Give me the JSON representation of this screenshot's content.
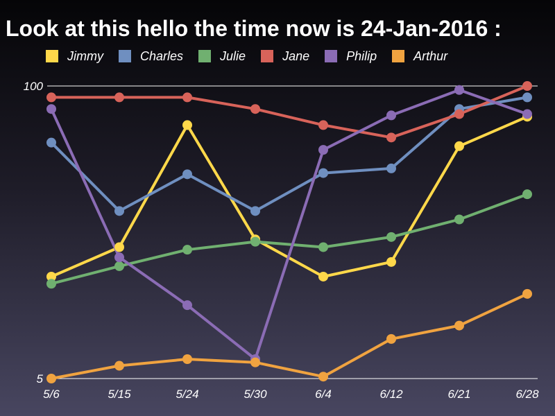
{
  "chart_data": {
    "type": "line",
    "title": "Look at this hello the time now is 24-Jan-2016 :",
    "xlabel": "",
    "ylabel": "",
    "categories": [
      "5/6",
      "5/15",
      "5/24",
      "5/30",
      "6/4",
      "6/12",
      "6/21",
      "6/28"
    ],
    "ylim": [
      5,
      100
    ],
    "yticks": [
      5,
      100
    ],
    "yscale": "log",
    "grid": false,
    "legend_position": "top",
    "series": [
      {
        "name": "Jimmy",
        "color": "#ffd84a",
        "values": [
          14.2,
          19.2,
          67,
          20.8,
          14.2,
          16.5,
          54,
          73
        ]
      },
      {
        "name": "Charles",
        "color": "#6f8fc0",
        "values": [
          56,
          27.8,
          40.5,
          27.8,
          41,
          43,
          79,
          89
        ]
      },
      {
        "name": "Julie",
        "color": "#70b070",
        "values": [
          13.2,
          15.8,
          18.7,
          20.3,
          19.2,
          21.3,
          25.5,
          33
        ]
      },
      {
        "name": "Jane",
        "color": "#d8635a",
        "values": [
          89,
          89,
          89,
          79,
          67,
          59,
          75,
          100
        ]
      },
      {
        "name": "Philip",
        "color": "#8b6cb5",
        "values": [
          79,
          17.3,
          10.6,
          6.1,
          52,
          74,
          96,
          75
        ]
      },
      {
        "name": "Arthur",
        "color": "#f0a340",
        "values": [
          5,
          5.7,
          6.1,
          5.9,
          5.1,
          7.5,
          8.6,
          11.9
        ]
      }
    ]
  }
}
